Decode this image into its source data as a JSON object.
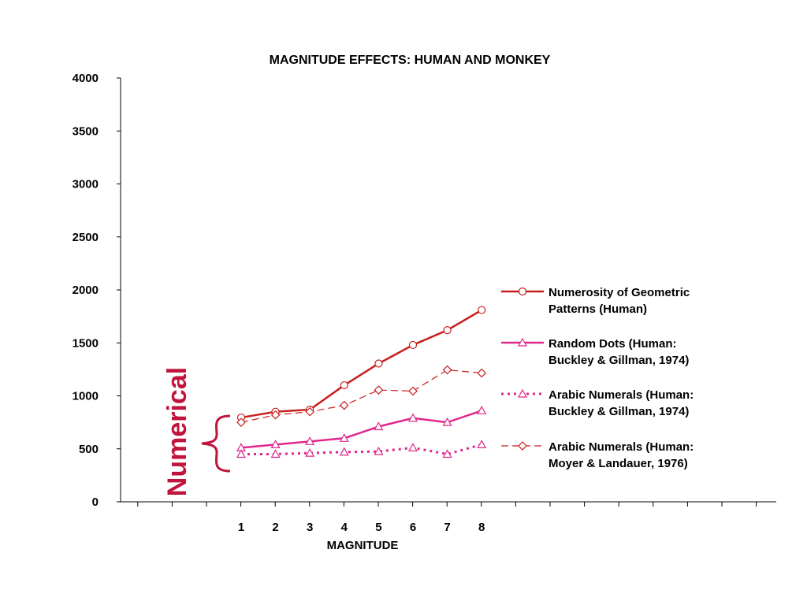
{
  "chart_data": {
    "type": "line",
    "title": "MAGNITUDE EFFECTS: HUMAN AND MONKEY",
    "xlabel": "MAGNITUDE",
    "ylabel": "",
    "x": [
      1,
      2,
      3,
      4,
      5,
      6,
      7,
      8
    ],
    "x_tick_labels": [
      "1",
      "2",
      "3",
      "4",
      "5",
      "6",
      "7",
      "8"
    ],
    "ylim": [
      0,
      4000
    ],
    "y_ticks": [
      0,
      500,
      1000,
      1500,
      2000,
      2500,
      3000,
      3500,
      4000
    ],
    "y_tick_labels": [
      "0",
      "500",
      "1000",
      "1500",
      "2000",
      "2500",
      "3000",
      "3500",
      "4000"
    ],
    "grid": false,
    "legend_position": "right",
    "series": [
      {
        "name_lines": [
          "Numerosity of Geometric",
          "Patterns (Human)"
        ],
        "values": [
          795,
          850,
          870,
          1100,
          1305,
          1480,
          1620,
          1810
        ],
        "color": "#c81e1e",
        "marker": "circle",
        "dash": "solid",
        "width": 2.5
      },
      {
        "name_lines": [
          "Random Dots (Human:",
          "Buckley & Gillman, 1974)"
        ],
        "values": [
          510,
          540,
          570,
          600,
          710,
          790,
          750,
          860
        ],
        "color": "#e0288c",
        "marker": "triangle",
        "dash": "solid",
        "width": 2.5
      },
      {
        "name_lines": [
          "Arabic Numerals (Human:",
          "Buckley & Gillman, 1974)"
        ],
        "values": [
          450,
          450,
          460,
          470,
          475,
          510,
          450,
          540
        ],
        "color": "#e0288c",
        "marker": "triangle",
        "dash": "dotted",
        "width": 3
      },
      {
        "name_lines": [
          "Arabic Numerals (Human:",
          "Moyer & Landauer, 1976)"
        ],
        "values": [
          750,
          820,
          850,
          910,
          1055,
          1045,
          1245,
          1215
        ],
        "color": "#c81e1e",
        "marker": "diamond",
        "dash": "dashed",
        "width": 1.2
      }
    ],
    "annotations": [
      {
        "text": "Numerical",
        "color": "#c0143c",
        "orientation": "vertical"
      }
    ]
  }
}
